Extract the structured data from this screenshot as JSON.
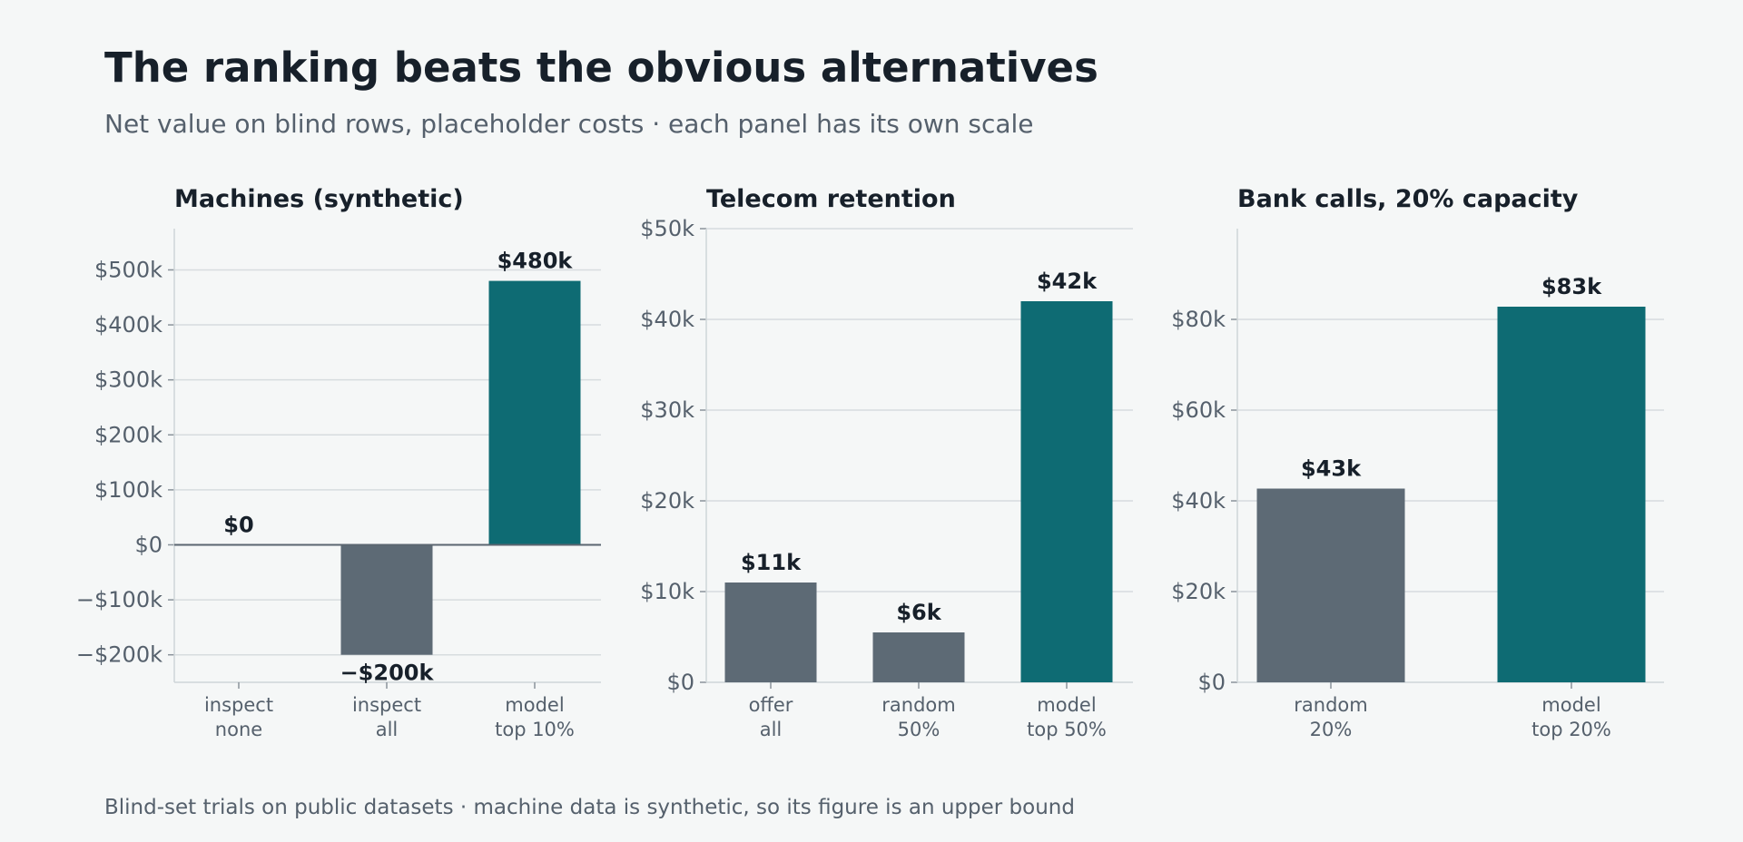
{
  "header": {
    "title": "The ranking beats the obvious alternatives",
    "subtitle": "Net value on blind rows, placeholder costs · each panel has its own scale"
  },
  "footer": {
    "note": "Blind-set trials on public datasets · machine data is synthetic, so its figure is an upper bound"
  },
  "colors": {
    "baseline": "#5d6a75",
    "model": "#0e6b73"
  },
  "chart_data": [
    {
      "type": "bar",
      "title": "Machines (synthetic)",
      "categories": [
        [
          "inspect",
          "none"
        ],
        [
          "inspect",
          "all"
        ],
        [
          "model",
          "top 10%"
        ]
      ],
      "values": [
        0,
        -200000,
        480000
      ],
      "value_labels": [
        "$0",
        "−$200k",
        "$480k"
      ],
      "highlight": [
        false,
        false,
        true
      ],
      "ylim": [
        -250000,
        575000
      ],
      "yticks": [
        -200000,
        -100000,
        0,
        100000,
        200000,
        300000,
        400000,
        500000
      ],
      "ytick_labels": [
        "−$200k",
        "−$100k",
        "$0",
        "$100k",
        "$200k",
        "$300k",
        "$400k",
        "$500k"
      ],
      "grid": true
    },
    {
      "type": "bar",
      "title": "Telecom retention",
      "categories": [
        [
          "offer",
          "all"
        ],
        [
          "random",
          "50%"
        ],
        [
          "model",
          "top 50%"
        ]
      ],
      "values": [
        11000,
        5500,
        42000
      ],
      "value_labels": [
        "$11k",
        "$6k",
        "$42k"
      ],
      "highlight": [
        false,
        false,
        true
      ],
      "ylim": [
        0,
        50000
      ],
      "yticks": [
        0,
        10000,
        20000,
        30000,
        40000,
        50000
      ],
      "ytick_labels": [
        "$0",
        "$10k",
        "$20k",
        "$30k",
        "$40k",
        "$50k"
      ],
      "grid": true
    },
    {
      "type": "bar",
      "title": "Bank calls, 20% capacity",
      "categories": [
        [
          "random",
          "20%"
        ],
        [
          "model",
          "top 20%"
        ]
      ],
      "values": [
        42700,
        82800
      ],
      "value_labels": [
        "$43k",
        "$83k"
      ],
      "highlight": [
        false,
        true
      ],
      "ylim": [
        0,
        100000
      ],
      "yticks": [
        0,
        20000,
        40000,
        60000,
        80000
      ],
      "ytick_labels": [
        "$0",
        "$20k",
        "$40k",
        "$60k",
        "$80k"
      ],
      "grid": true
    }
  ]
}
